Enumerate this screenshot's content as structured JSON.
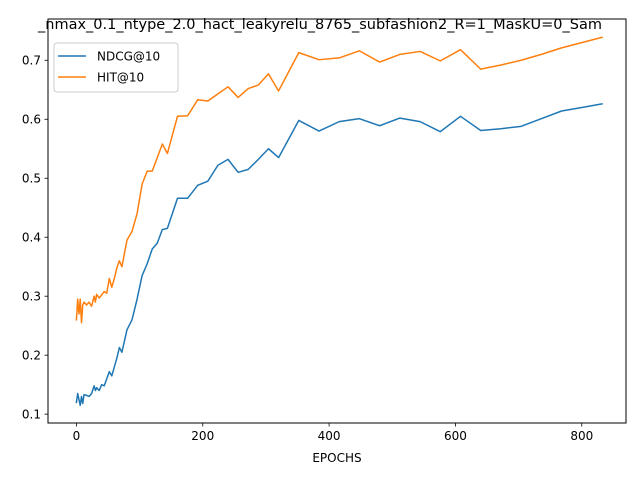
{
  "chart_data": {
    "type": "line",
    "title": "_nmax_0.1_ntype_2.0_hact_leakyrelu_8765_subfashion2_R=1_MaskU=0_Sam",
    "xlabel": "EPOCHS",
    "ylabel": "",
    "xlim": [
      -45,
      870
    ],
    "ylim": [
      0.085,
      0.77
    ],
    "xticks": [
      0,
      200,
      400,
      600,
      800
    ],
    "yticks": [
      0.1,
      0.2,
      0.3,
      0.4,
      0.5,
      0.6,
      0.7
    ],
    "xtick_labels": [
      "0",
      "200",
      "400",
      "600",
      "800"
    ],
    "ytick_labels": [
      "0.1",
      "0.2",
      "0.3",
      "0.4",
      "0.5",
      "0.6",
      "0.7"
    ],
    "grid": false,
    "legend_position": "top-left",
    "series": [
      {
        "name": "NDCG@10",
        "color": "#1f77b4",
        "x": [
          0,
          2,
          4,
          6,
          8,
          10,
          12,
          16,
          20,
          24,
          28,
          30,
          32,
          36,
          40,
          44,
          48,
          52,
          56,
          60,
          64,
          68,
          72,
          80,
          88,
          96,
          104,
          112,
          120,
          128,
          136,
          144,
          160,
          176,
          192,
          208,
          224,
          240,
          256,
          272,
          288,
          304,
          320,
          352,
          384,
          416,
          448,
          480,
          512,
          544,
          576,
          608,
          640,
          672,
          704,
          736,
          768,
          800,
          832
        ],
        "y": [
          0.12,
          0.135,
          0.125,
          0.115,
          0.13,
          0.118,
          0.133,
          0.132,
          0.13,
          0.135,
          0.148,
          0.14,
          0.145,
          0.14,
          0.15,
          0.148,
          0.16,
          0.172,
          0.165,
          0.18,
          0.195,
          0.213,
          0.205,
          0.243,
          0.26,
          0.295,
          0.335,
          0.355,
          0.38,
          0.39,
          0.413,
          0.415,
          0.466,
          0.466,
          0.488,
          0.495,
          0.522,
          0.532,
          0.51,
          0.515,
          0.532,
          0.55,
          0.535,
          0.598,
          0.58,
          0.596,
          0.601,
          0.589,
          0.602,
          0.596,
          0.579,
          0.605,
          0.581,
          0.584,
          0.588,
          0.601,
          0.614,
          0.62,
          0.626
        ]
      },
      {
        "name": "HIT@10",
        "color": "#ff7f0e",
        "x": [
          0,
          2,
          4,
          6,
          8,
          10,
          12,
          16,
          20,
          24,
          28,
          30,
          32,
          36,
          40,
          44,
          48,
          52,
          56,
          60,
          64,
          68,
          72,
          80,
          88,
          96,
          104,
          112,
          120,
          128,
          136,
          144,
          160,
          176,
          192,
          208,
          224,
          240,
          256,
          272,
          288,
          304,
          320,
          352,
          384,
          416,
          448,
          480,
          512,
          544,
          576,
          608,
          640,
          672,
          704,
          736,
          768,
          800,
          832
        ],
        "y": [
          0.26,
          0.295,
          0.27,
          0.295,
          0.255,
          0.285,
          0.29,
          0.285,
          0.29,
          0.283,
          0.3,
          0.29,
          0.303,
          0.297,
          0.302,
          0.308,
          0.305,
          0.33,
          0.315,
          0.33,
          0.348,
          0.36,
          0.35,
          0.395,
          0.41,
          0.44,
          0.49,
          0.512,
          0.512,
          0.535,
          0.558,
          0.542,
          0.605,
          0.606,
          0.633,
          0.631,
          0.643,
          0.655,
          0.637,
          0.652,
          0.658,
          0.677,
          0.648,
          0.713,
          0.701,
          0.704,
          0.716,
          0.697,
          0.71,
          0.715,
          0.699,
          0.718,
          0.685,
          0.692,
          0.7,
          0.71,
          0.721,
          0.73,
          0.739
        ]
      }
    ]
  }
}
